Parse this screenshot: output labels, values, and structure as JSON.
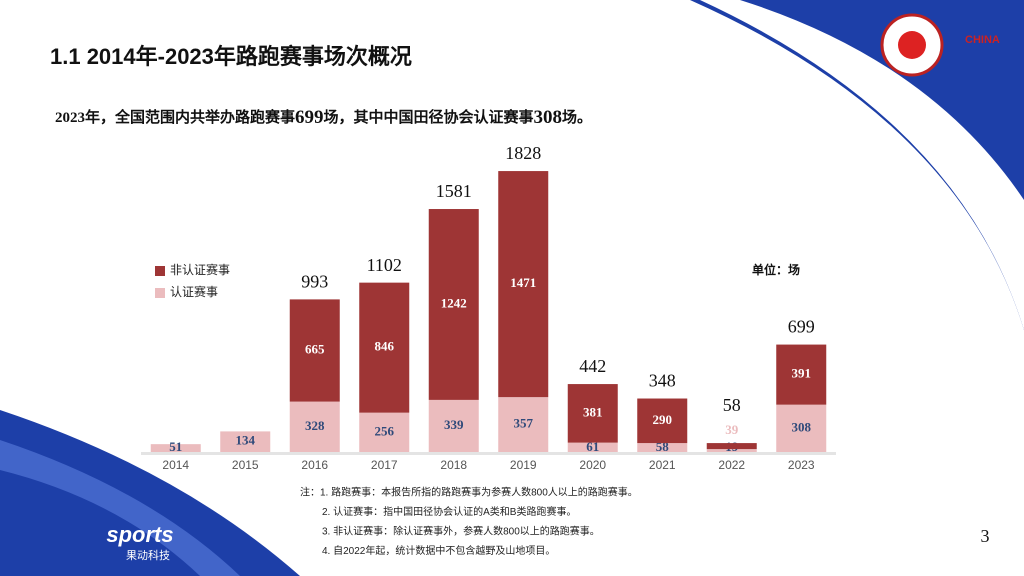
{
  "chart_data": {
    "type": "bar",
    "stacked": true,
    "title": "1.1 2014年-2023年路跑赛事场次概况",
    "subtitle_parts": [
      "2023年，全国范围内共举办路跑赛事",
      "699",
      "场，其中中国田径协会认证赛事",
      "308",
      "场。"
    ],
    "unit_label": "单位：场",
    "categories": [
      "2014",
      "2015",
      "2016",
      "2017",
      "2018",
      "2019",
      "2020",
      "2021",
      "2022",
      "2023"
    ],
    "series": [
      {
        "name": "非认证赛事",
        "color": "#9e3535",
        "values": [
          null,
          null,
          665,
          846,
          1242,
          1471,
          381,
          290,
          39,
          391
        ]
      },
      {
        "name": "认证赛事",
        "color": "#ebbcbe",
        "values": [
          51,
          134,
          328,
          256,
          339,
          357,
          61,
          58,
          19,
          308
        ]
      }
    ],
    "totals": [
      null,
      null,
      993,
      1102,
      1581,
      1828,
      442,
      348,
      58,
      699
    ],
    "ylim": [
      0,
      1900
    ],
    "legend": "upper left"
  },
  "notes": [
    "注：1. 路跑赛事：本报告所指的路跑赛事为参赛人数800人以上的路跑赛事。",
    "2. 认证赛事：指中国田径协会认证的A类和B类路跑赛事。",
    "3. 非认证赛事：除认证赛事外，参赛人数800以上的路跑赛事。",
    "4. 自2022年起，统计数据中不包含越野及山地项目。"
  ],
  "page_number": "3",
  "logo": {
    "brand": "sports",
    "company": "果动科技",
    "partner": "CHINA"
  }
}
